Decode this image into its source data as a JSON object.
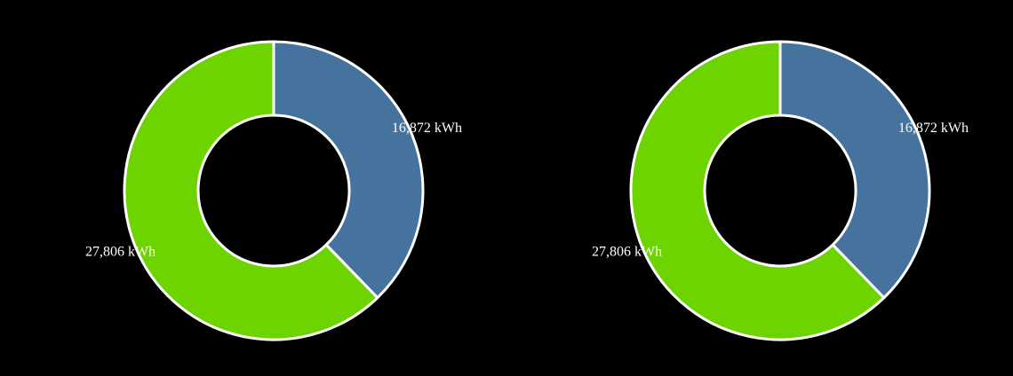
{
  "chart_data": [
    {
      "type": "pie",
      "donut": true,
      "slices": [
        {
          "value": 16872,
          "label": "16,872 kWh",
          "color": "#45739e"
        },
        {
          "value": 27806,
          "label": "27,806 kWh",
          "color": "#6dd400"
        }
      ]
    },
    {
      "type": "pie",
      "donut": true,
      "slices": [
        {
          "value": 16872,
          "label": "16,872 kWh",
          "color": "#45739e"
        },
        {
          "value": 27806,
          "label": "27,806 kWh",
          "color": "#6dd400"
        }
      ]
    }
  ],
  "style": {
    "background": "#000000",
    "slice_border": "#ffffff",
    "label_color": "#ffffff"
  }
}
